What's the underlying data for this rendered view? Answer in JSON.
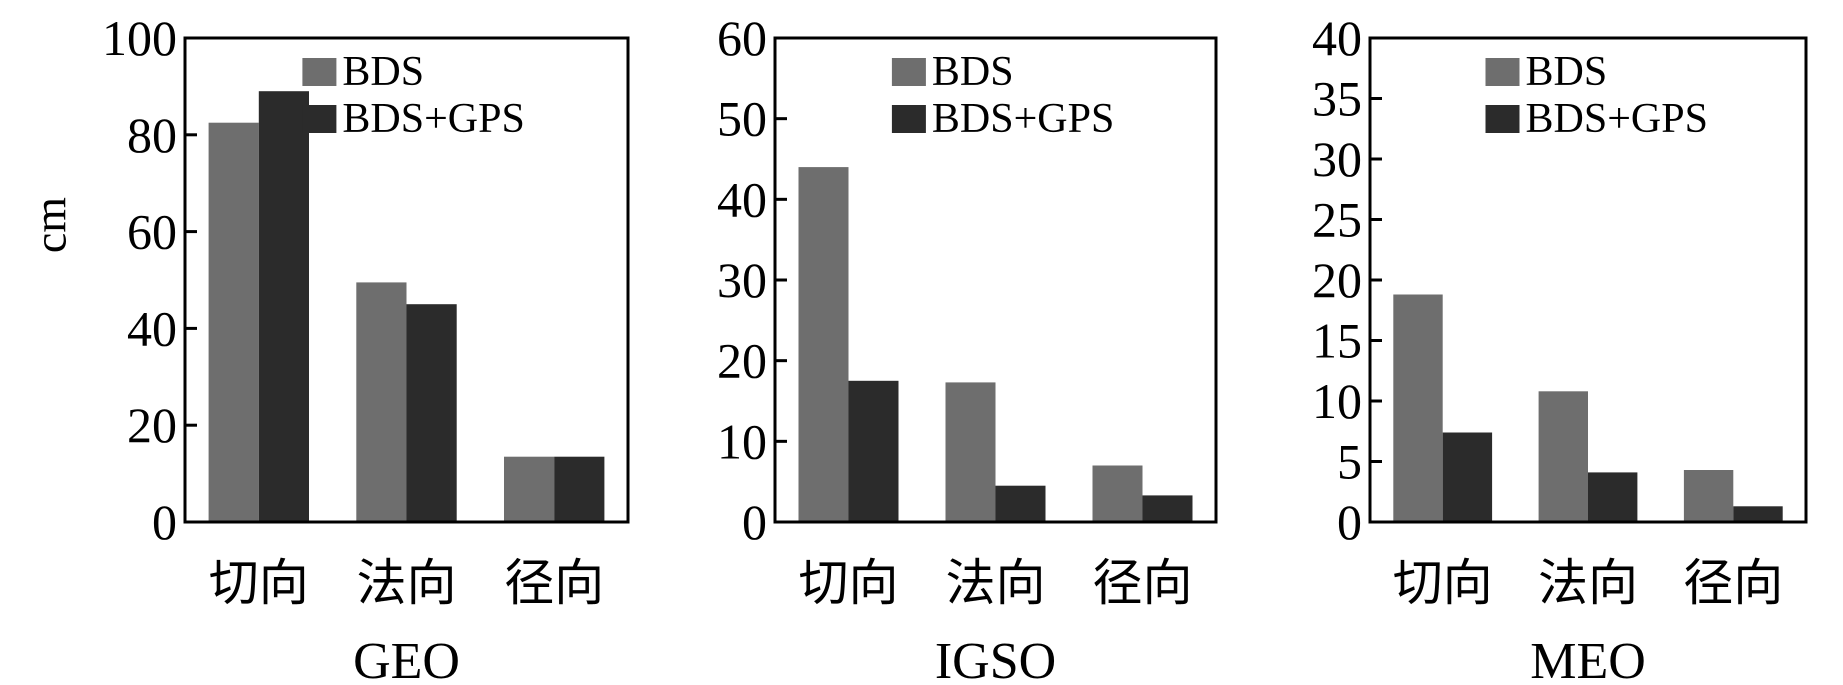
{
  "colors": {
    "bds": "#6e6e6e",
    "bds_gps": "#2b2b2b",
    "axis": "#000000",
    "background": "#ffffff"
  },
  "ylabel": "cm",
  "chart_data": [
    {
      "type": "bar",
      "title": "GEO",
      "categories": [
        "切向",
        "法向",
        "径向"
      ],
      "series": [
        {
          "name": "BDS",
          "values": [
            82.5,
            49.5,
            13.5
          ]
        },
        {
          "name": "BDS+GPS",
          "values": [
            89,
            45,
            13.5
          ]
        }
      ],
      "ylim": [
        0,
        100
      ],
      "yticks": [
        0,
        20,
        40,
        60,
        80,
        100
      ],
      "ylabel": "cm",
      "legend": "top-right",
      "grid": false
    },
    {
      "type": "bar",
      "title": "IGSO",
      "categories": [
        "切向",
        "法向",
        "径向"
      ],
      "series": [
        {
          "name": "BDS",
          "values": [
            44,
            17.3,
            7
          ]
        },
        {
          "name": "BDS+GPS",
          "values": [
            17.5,
            4.5,
            3.3
          ]
        }
      ],
      "ylim": [
        0,
        60
      ],
      "yticks": [
        0,
        10,
        20,
        30,
        40,
        50,
        60
      ],
      "ylabel": "",
      "legend": "top-right",
      "grid": false
    },
    {
      "type": "bar",
      "title": "MEO",
      "categories": [
        "切向",
        "法向",
        "径向"
      ],
      "series": [
        {
          "name": "BDS",
          "values": [
            18.8,
            10.8,
            4.3
          ]
        },
        {
          "name": "BDS+GPS",
          "values": [
            7.4,
            4.1,
            1.3
          ]
        }
      ],
      "ylim": [
        0,
        40
      ],
      "yticks": [
        0,
        5,
        10,
        15,
        20,
        25,
        30,
        35,
        40
      ],
      "ylabel": "",
      "legend": "top-right",
      "grid": false
    }
  ]
}
